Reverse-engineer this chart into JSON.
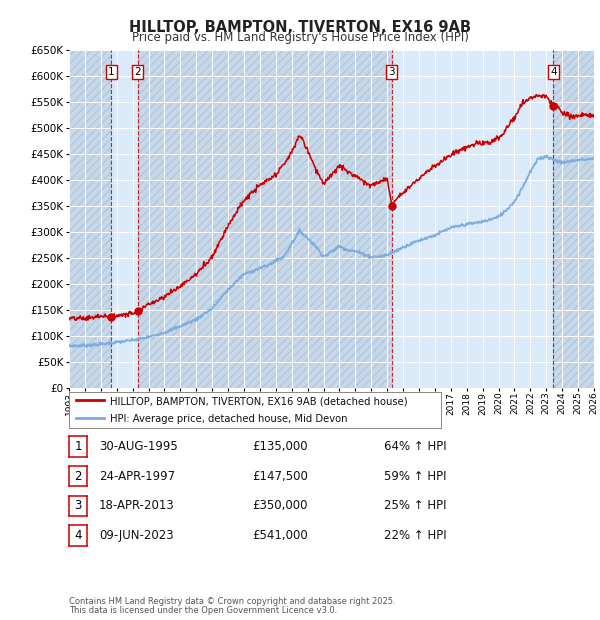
{
  "title": "HILLTOP, BAMPTON, TIVERTON, EX16 9AB",
  "subtitle": "Price paid vs. HM Land Registry's House Price Index (HPI)",
  "legend_line1": "HILLTOP, BAMPTON, TIVERTON, EX16 9AB (detached house)",
  "legend_line2": "HPI: Average price, detached house, Mid Devon",
  "footer1": "Contains HM Land Registry data © Crown copyright and database right 2025.",
  "footer2": "This data is licensed under the Open Government Licence v3.0.",
  "transactions": [
    {
      "num": 1,
      "date": "30-AUG-1995",
      "price": 135000,
      "pct": "64%",
      "dir": "↑"
    },
    {
      "num": 2,
      "date": "24-APR-1997",
      "price": 147500,
      "pct": "59%",
      "dir": "↑"
    },
    {
      "num": 3,
      "date": "18-APR-2013",
      "price": 350000,
      "pct": "25%",
      "dir": "↑"
    },
    {
      "num": 4,
      "date": "09-JUN-2023",
      "price": 541000,
      "pct": "22%",
      "dir": "↑"
    }
  ],
  "transaction_dates_decimal": [
    1995.66,
    1997.31,
    2013.29,
    2023.44
  ],
  "red_line_color": "#cc0000",
  "blue_line_color": "#7aaadd",
  "background_color": "#dce8f5",
  "grid_color": "#ffffff",
  "ylim": [
    0,
    650000
  ],
  "xmin": 1993.0,
  "xmax": 2026.0,
  "hpi_anchors": {
    "1993.0": 80000,
    "1994.0": 81000,
    "1995.0": 83000,
    "1996.0": 87000,
    "1997.0": 91000,
    "1998.0": 97000,
    "1999.0": 106000,
    "2000.0": 118000,
    "2001.0": 131000,
    "2002.0": 152000,
    "2003.0": 188000,
    "2004.0": 218000,
    "2005.5": 235000,
    "2006.5": 252000,
    "2007.5": 302000,
    "2008.5": 272000,
    "2009.0": 252000,
    "2009.5": 261000,
    "2010.0": 272000,
    "2010.5": 265000,
    "2011.0": 262000,
    "2011.5": 257000,
    "2012.0": 251000,
    "2012.5": 252000,
    "2013.0": 255000,
    "2013.5": 262000,
    "2014.0": 270000,
    "2015.0": 283000,
    "2016.0": 293000,
    "2017.0": 307000,
    "2018.0": 314000,
    "2019.0": 319000,
    "2020.0": 328000,
    "2020.5": 342000,
    "2021.0": 358000,
    "2021.5": 385000,
    "2022.0": 415000,
    "2022.5": 440000,
    "2023.0": 445000,
    "2023.5": 438000,
    "2024.0": 432000,
    "2024.5": 435000,
    "2025.0": 438000,
    "2026.0": 440000
  },
  "prop_price_anchors": {
    "1993.0": 132000,
    "1994.0": 133000,
    "1995.0": 137000,
    "1995.66": 135000,
    "1996.0": 138000,
    "1997.0": 143000,
    "1997.31": 147500,
    "1998.0": 160000,
    "1999.0": 175000,
    "2000.0": 195000,
    "2001.0": 218000,
    "2002.0": 252000,
    "2003.0": 312000,
    "2004.0": 360000,
    "2005.0": 389000,
    "2006.0": 408000,
    "2007.0": 452000,
    "2007.5": 487000,
    "2008.0": 456000,
    "2008.5": 422000,
    "2009.0": 392000,
    "2009.5": 408000,
    "2010.0": 427000,
    "2010.5": 415000,
    "2011.0": 408000,
    "2011.5": 398000,
    "2012.0": 388000,
    "2012.5": 395000,
    "2013.0": 402000,
    "2013.29": 350000,
    "2013.5": 362000,
    "2014.0": 375000,
    "2014.5": 390000,
    "2015.0": 402000,
    "2015.5": 415000,
    "2016.0": 428000,
    "2016.5": 435000,
    "2017.0": 448000,
    "2017.5": 455000,
    "2018.0": 462000,
    "2018.5": 468000,
    "2019.0": 470000,
    "2019.5": 472000,
    "2020.0": 478000,
    "2020.5": 498000,
    "2021.0": 520000,
    "2021.5": 545000,
    "2022.0": 558000,
    "2022.5": 562000,
    "2023.0": 560000,
    "2023.44": 541000,
    "2023.5": 545000,
    "2024.0": 530000,
    "2024.5": 520000,
    "2025.0": 522000,
    "2026.0": 525000
  }
}
